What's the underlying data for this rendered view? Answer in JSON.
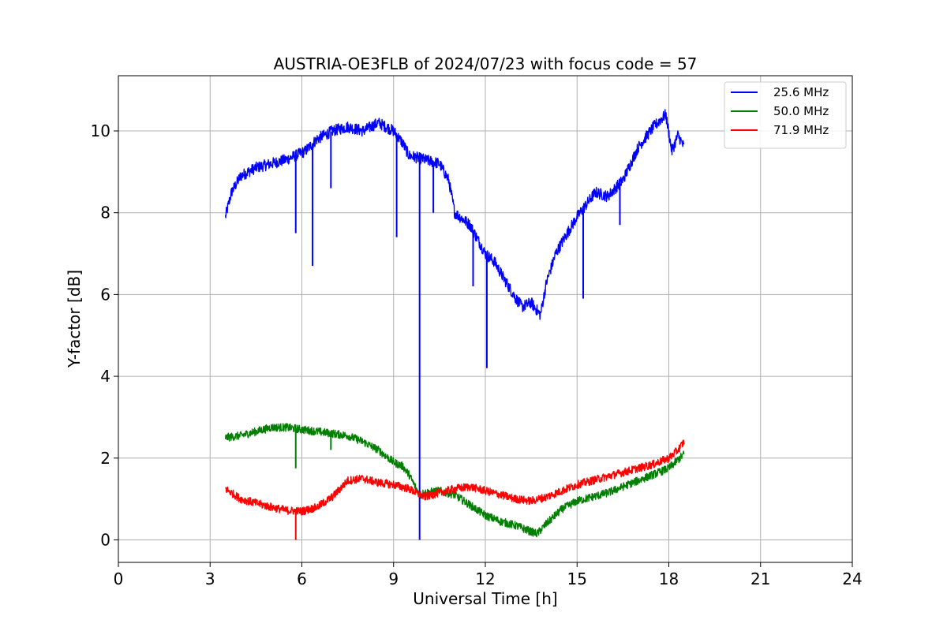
{
  "chart_data": {
    "type": "line",
    "title": "AUSTRIA-OE3FLB of 2024/07/23 with focus code = 57",
    "xlabel": "Universal Time [h]",
    "ylabel": "Y-factor [dB]",
    "xlim": [
      0,
      24
    ],
    "ylim": [
      -0.55,
      11.35
    ],
    "xticks": [
      0,
      3,
      6,
      9,
      12,
      15,
      18,
      21,
      24
    ],
    "yticks": [
      0,
      2,
      4,
      6,
      8,
      10
    ],
    "grid": true,
    "legend_position": "top-right",
    "series": [
      {
        "name": "25.6 MHz",
        "color": "#0000ff",
        "x": [
          3.5,
          3.7,
          4.0,
          4.5,
          5.0,
          5.5,
          5.8,
          6.1,
          6.5,
          7.0,
          7.5,
          8.0,
          8.5,
          9.0,
          9.3,
          9.5,
          10.0,
          10.5,
          10.8,
          11.0,
          11.5,
          12.0,
          12.3,
          12.6,
          13.0,
          13.2,
          13.5,
          13.8,
          14.0,
          14.3,
          14.6,
          15.0,
          15.3,
          15.6,
          16.0,
          16.5,
          17.0,
          17.5,
          17.9,
          18.1,
          18.3,
          18.5
        ],
        "y": [
          7.9,
          8.5,
          8.9,
          9.1,
          9.2,
          9.3,
          9.4,
          9.5,
          9.8,
          10.0,
          10.1,
          10.0,
          10.2,
          10.0,
          9.7,
          9.4,
          9.3,
          9.2,
          8.8,
          8.0,
          7.7,
          7.0,
          6.8,
          6.4,
          5.9,
          5.7,
          5.8,
          5.5,
          6.3,
          7.0,
          7.4,
          7.9,
          8.2,
          8.5,
          8.4,
          8.8,
          9.6,
          10.1,
          10.4,
          9.5,
          9.9,
          9.6
        ],
        "dips": [
          {
            "x": 5.8,
            "y": 7.5
          },
          {
            "x": 6.35,
            "y": 6.7
          },
          {
            "x": 6.95,
            "y": 8.6
          },
          {
            "x": 9.1,
            "y": 7.4
          },
          {
            "x": 9.85,
            "y": 0.0
          },
          {
            "x": 10.3,
            "y": 8.0
          },
          {
            "x": 11.6,
            "y": 6.2
          },
          {
            "x": 12.05,
            "y": 4.2
          },
          {
            "x": 15.2,
            "y": 5.9
          },
          {
            "x": 16.4,
            "y": 7.7
          }
        ]
      },
      {
        "name": "50.0 MHz",
        "color": "#008000",
        "x": [
          3.5,
          4.0,
          4.5,
          5.0,
          5.5,
          6.0,
          6.5,
          7.0,
          7.5,
          8.0,
          8.5,
          9.0,
          9.3,
          9.5,
          9.85,
          10.0,
          10.5,
          11.0,
          11.5,
          12.0,
          12.5,
          13.0,
          13.5,
          13.7,
          14.0,
          14.5,
          15.0,
          15.5,
          16.0,
          16.5,
          17.0,
          17.5,
          18.0,
          18.5
        ],
        "y": [
          2.5,
          2.55,
          2.65,
          2.75,
          2.75,
          2.7,
          2.65,
          2.6,
          2.55,
          2.4,
          2.2,
          1.9,
          1.8,
          1.6,
          1.1,
          1.15,
          1.2,
          1.1,
          0.85,
          0.6,
          0.45,
          0.35,
          0.2,
          0.15,
          0.4,
          0.75,
          0.95,
          1.05,
          1.15,
          1.3,
          1.45,
          1.6,
          1.75,
          2.1
        ],
        "dips": [
          {
            "x": 5.8,
            "y": 1.75
          },
          {
            "x": 6.95,
            "y": 2.2
          }
        ]
      },
      {
        "name": "71.9 MHz",
        "color": "#ff0000",
        "x": [
          3.5,
          4.0,
          4.5,
          5.0,
          5.5,
          6.0,
          6.5,
          7.0,
          7.5,
          8.0,
          8.5,
          9.0,
          9.5,
          10.0,
          10.5,
          11.0,
          11.5,
          12.0,
          12.5,
          13.0,
          13.5,
          14.0,
          14.5,
          15.0,
          15.5,
          16.0,
          16.5,
          17.0,
          17.5,
          18.0,
          18.3,
          18.5
        ],
        "y": [
          1.25,
          1.0,
          0.9,
          0.8,
          0.72,
          0.7,
          0.8,
          1.05,
          1.45,
          1.5,
          1.4,
          1.35,
          1.25,
          1.05,
          1.15,
          1.25,
          1.3,
          1.2,
          1.1,
          1.0,
          0.95,
          1.05,
          1.2,
          1.35,
          1.45,
          1.55,
          1.65,
          1.75,
          1.85,
          2.0,
          2.2,
          2.4
        ],
        "dips": [
          {
            "x": 5.8,
            "y": 0.0
          }
        ]
      }
    ]
  }
}
